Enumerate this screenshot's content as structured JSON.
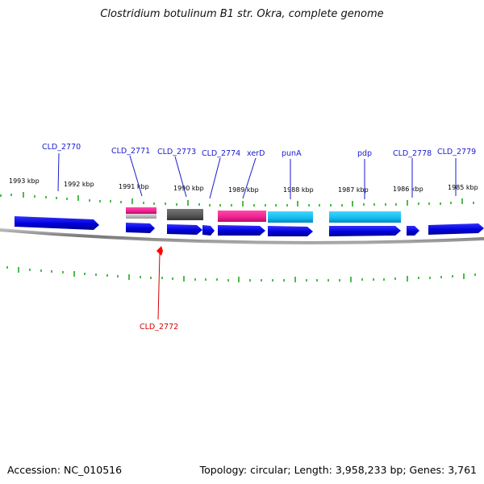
{
  "title": "Clostridium botulinum B1 str. Okra, complete genome",
  "footer": {
    "accession": "Accession: NC_010516",
    "summary": "Topology: circular; Length: 3,958,233 bp; Genes: 3,761"
  },
  "colors": {
    "cds_forward": "#0000ee",
    "cds_reverse": "#ff0000",
    "pink": "#ee1f8f",
    "cyan": "#11bbee",
    "gray": "#555555",
    "tick": "#00a000",
    "backbone": "#888888"
  },
  "kbp_labels": [
    "1993 kbp",
    "1992 kbp",
    "1991 kbp",
    "1990 kbp",
    "1989 kbp",
    "1988 kbp",
    "1987 kbp",
    "1986 kbp",
    "1985 kbp"
  ],
  "gene_labels": [
    {
      "text": "CLD_2770",
      "strand": "forward"
    },
    {
      "text": "CLD_2771",
      "strand": "forward"
    },
    {
      "text": "CLD_2773",
      "strand": "forward"
    },
    {
      "text": "CLD_2774",
      "strand": "forward"
    },
    {
      "text": "xerD",
      "strand": "forward"
    },
    {
      "text": "punA",
      "strand": "forward"
    },
    {
      "text": "pdp",
      "strand": "forward"
    },
    {
      "text": "CLD_2778",
      "strand": "forward"
    },
    {
      "text": "CLD_2779",
      "strand": "forward"
    },
    {
      "text": "CLD_2772",
      "strand": "reverse"
    }
  ]
}
